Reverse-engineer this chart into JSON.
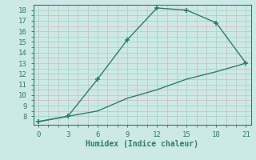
{
  "xlabel": "Humidex (Indice chaleur)",
  "line1_x": [
    0,
    3,
    6,
    9,
    12,
    15,
    18,
    21
  ],
  "line1_y": [
    7.5,
    8.0,
    11.5,
    15.2,
    18.2,
    18.0,
    16.8,
    13.0
  ],
  "line2_x": [
    0,
    3,
    6,
    9,
    12,
    15,
    18,
    21
  ],
  "line2_y": [
    7.5,
    8.0,
    8.5,
    9.7,
    10.5,
    11.5,
    12.2,
    13.0
  ],
  "line_color": "#2e7d6e",
  "bg_color": "#cce9e6",
  "grid_major_color": "#b0d4d0",
  "grid_minor_color": "#c8e4e1",
  "text_color": "#2e7d6e",
  "xlim": [
    -0.5,
    21.5
  ],
  "ylim": [
    7.2,
    18.5
  ],
  "xticks": [
    0,
    3,
    6,
    9,
    12,
    15,
    18,
    21
  ],
  "yticks": [
    8,
    9,
    10,
    11,
    12,
    13,
    14,
    15,
    16,
    17,
    18
  ],
  "marker": "+",
  "marker_size": 5,
  "line_width": 1.0
}
